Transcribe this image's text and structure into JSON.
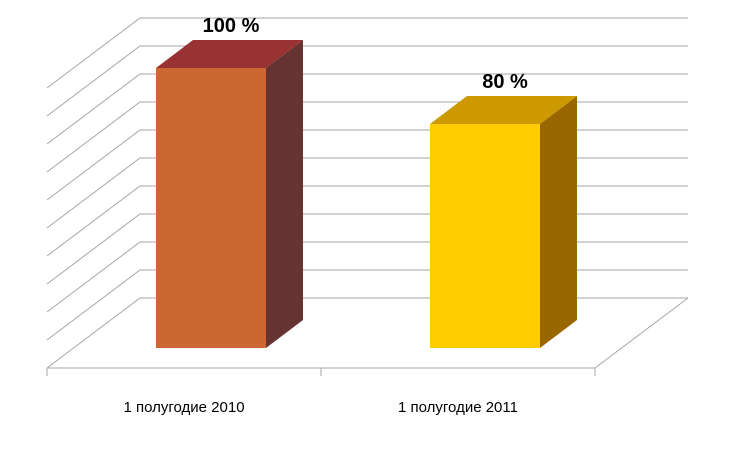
{
  "chart_data": {
    "type": "bar",
    "title": "",
    "xlabel": "",
    "ylabel": "",
    "categories": [
      "1 полугодие 2010",
      "1 полугодие 2011"
    ],
    "values": [
      100,
      80
    ],
    "data_labels": [
      "100 %",
      "80 %"
    ],
    "ylim": [
      0,
      100
    ],
    "grid": true,
    "legend": "none",
    "colors": [
      {
        "front": "#cc6633",
        "top": "#993333",
        "side": "#663333"
      },
      {
        "front": "#ffcc00",
        "top": "#cc9900",
        "side": "#996600"
      }
    ],
    "grid_color": "#a6a6a6"
  }
}
